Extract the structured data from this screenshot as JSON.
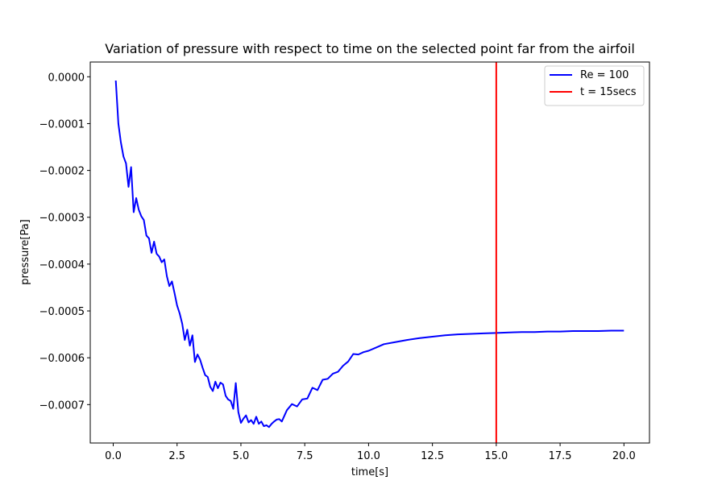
{
  "chart_data": {
    "type": "line",
    "title": "Variation of pressure with respect to time on the selected point far from the airfoil",
    "xlabel": "time[s]",
    "ylabel": "pressure[Pa]",
    "xlim": [
      -0.9,
      21.0
    ],
    "ylim": [
      -0.000782,
      3.15e-05
    ],
    "xticks": [
      0.0,
      2.5,
      5.0,
      7.5,
      10.0,
      12.5,
      15.0,
      17.5,
      20.0
    ],
    "xtick_labels": [
      "0.0",
      "2.5",
      "5.0",
      "7.5",
      "10.0",
      "12.5",
      "15.0",
      "17.5",
      "20.0"
    ],
    "yticks": [
      0.0,
      -0.0001,
      -0.0002,
      -0.0003,
      -0.0004,
      -0.0005,
      -0.0006,
      -0.0007
    ],
    "ytick_labels": [
      "0.0000",
      "−0.0001",
      "−0.0002",
      "−0.0003",
      "−0.0004",
      "−0.0005",
      "−0.0006",
      "−0.0007"
    ],
    "grid": false,
    "legend_position": "top-right",
    "series": [
      {
        "name": "Re = 100",
        "color": "#0000ff",
        "x": [
          0.1,
          0.2,
          0.3,
          0.4,
          0.5,
          0.6,
          0.7,
          0.8,
          0.9,
          1.0,
          1.1,
          1.2,
          1.3,
          1.4,
          1.5,
          1.6,
          1.7,
          1.8,
          1.9,
          2.0,
          2.1,
          2.2,
          2.3,
          2.4,
          2.5,
          2.6,
          2.7,
          2.8,
          2.9,
          3.0,
          3.1,
          3.2,
          3.3,
          3.4,
          3.5,
          3.6,
          3.7,
          3.8,
          3.9,
          4.0,
          4.1,
          4.2,
          4.3,
          4.4,
          4.5,
          4.6,
          4.7,
          4.8,
          4.9,
          5.0,
          5.1,
          5.2,
          5.3,
          5.4,
          5.5,
          5.6,
          5.7,
          5.8,
          5.9,
          6.0,
          6.1,
          6.2,
          6.3,
          6.4,
          6.5,
          6.6,
          6.8,
          7.0,
          7.2,
          7.4,
          7.6,
          7.8,
          8.0,
          8.2,
          8.4,
          8.6,
          8.8,
          9.0,
          9.2,
          9.4,
          9.6,
          9.8,
          10.0,
          10.3,
          10.6,
          11.0,
          11.5,
          12.0,
          12.5,
          13.0,
          13.5,
          14.0,
          14.5,
          15.0,
          15.5,
          16.0,
          16.5,
          17.0,
          17.5,
          18.0,
          18.5,
          19.0,
          19.5,
          20.0
        ],
        "y": [
          -8e-06,
          -0.0001,
          -0.00014,
          -0.00017,
          -0.000185,
          -0.000235,
          -0.000193,
          -0.000289,
          -0.000259,
          -0.000284,
          -0.000298,
          -0.000306,
          -0.000339,
          -0.000345,
          -0.000376,
          -0.000352,
          -0.000378,
          -0.000384,
          -0.000396,
          -0.00039,
          -0.000426,
          -0.000447,
          -0.000437,
          -0.000462,
          -0.000488,
          -0.000505,
          -0.000527,
          -0.000562,
          -0.00054,
          -0.000574,
          -0.000552,
          -0.000609,
          -0.000593,
          -0.000604,
          -0.000621,
          -0.000637,
          -0.000641,
          -0.000662,
          -0.000671,
          -0.000651,
          -0.000665,
          -0.000653,
          -0.000657,
          -0.000681,
          -0.000689,
          -0.000692,
          -0.000709,
          -0.000654,
          -0.000716,
          -0.000739,
          -0.00073,
          -0.000723,
          -0.000738,
          -0.000733,
          -0.000741,
          -0.000726,
          -0.000741,
          -0.000736,
          -0.000746,
          -0.000744,
          -0.000748,
          -0.000741,
          -0.000736,
          -0.000732,
          -0.000731,
          -0.000736,
          -0.000712,
          -0.000699,
          -0.000704,
          -0.000689,
          -0.000687,
          -0.000664,
          -0.000669,
          -0.000647,
          -0.000645,
          -0.000634,
          -0.00063,
          -0.000617,
          -0.000608,
          -0.000592,
          -0.000593,
          -0.000588,
          -0.000585,
          -0.000578,
          -0.000571,
          -0.000567,
          -0.000562,
          -0.000558,
          -0.000555,
          -0.000552,
          -0.00055,
          -0.000549,
          -0.000548,
          -0.000547,
          -0.000546,
          -0.000545,
          -0.000545,
          -0.000544,
          -0.000544,
          -0.000543,
          -0.000543,
          -0.000543,
          -0.000542,
          -0.000542
        ]
      },
      {
        "name": "t = 15secs",
        "color": "#ff0000",
        "vline_x": 15.0
      }
    ]
  }
}
